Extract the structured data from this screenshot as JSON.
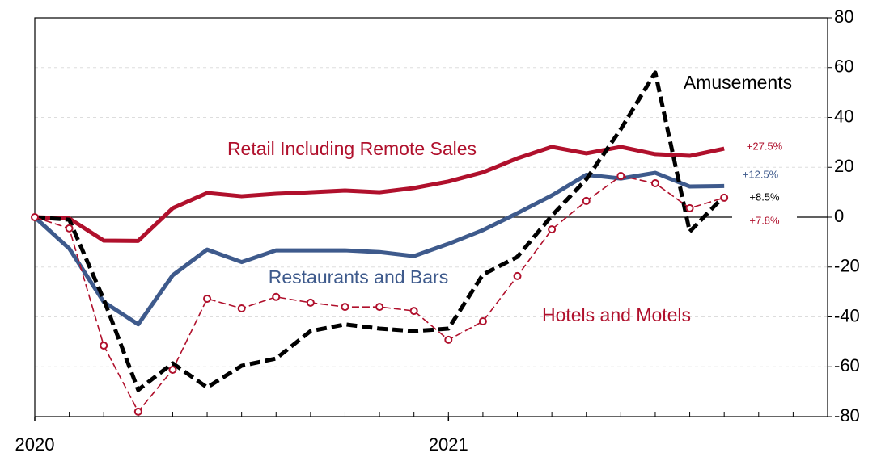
{
  "chart_data": {
    "type": "line",
    "categories": [
      "2020",
      null,
      null,
      null,
      null,
      null,
      null,
      null,
      null,
      null,
      null,
      null,
      "2021",
      null,
      null,
      null,
      null,
      null,
      null,
      null,
      null
    ],
    "ylim": [
      -80,
      80
    ],
    "yticks": [
      -80,
      -60,
      -40,
      -20,
      0,
      20,
      40,
      60,
      80
    ],
    "grid": true,
    "y_axis_side": "right",
    "series": [
      {
        "name": "Retail Including Remote Sales",
        "color": "#b0102c",
        "style": "solid",
        "values": [
          0,
          -0.5,
          -9.4,
          -9.5,
          3.6,
          9.7,
          8.4,
          9.4,
          10,
          10.7,
          10,
          11.7,
          14.3,
          18,
          23.6,
          28.2,
          25.6,
          28.2,
          25.3,
          24.6,
          27.5
        ],
        "value_labels": [
          null,
          null,
          null,
          null,
          null,
          null,
          null,
          null,
          null,
          null,
          null,
          null,
          null,
          null,
          null,
          null,
          null,
          null,
          null,
          null,
          "+27.5%"
        ]
      },
      {
        "name": "Restaurants and Bars",
        "color": "#3e5a8c",
        "style": "solid",
        "values": [
          0,
          -12.6,
          -34,
          -43,
          -23.3,
          -13,
          -18,
          -13.3,
          -13.3,
          -13.3,
          -14,
          -15.6,
          -10.7,
          -5.2,
          1.6,
          8.7,
          17,
          15.5,
          17.8,
          12.3,
          12.5
        ],
        "value_labels": [
          null,
          null,
          null,
          null,
          null,
          null,
          null,
          null,
          null,
          null,
          null,
          null,
          null,
          null,
          null,
          null,
          null,
          null,
          null,
          null,
          "+12.5%"
        ]
      },
      {
        "name": "Amusements",
        "color": "#000000",
        "style": "dashed",
        "values": [
          0,
          -1,
          -33,
          -69.3,
          -58.6,
          -68.3,
          -59.6,
          -56.7,
          -45.7,
          -43,
          -44.7,
          -45.7,
          -44.7,
          -23,
          -15.9,
          0.6,
          15.2,
          35.3,
          58,
          -5.8,
          8.5
        ],
        "value_labels": [
          null,
          null,
          null,
          null,
          null,
          null,
          null,
          null,
          null,
          null,
          null,
          null,
          null,
          null,
          null,
          null,
          null,
          null,
          null,
          null,
          "+8.5%"
        ]
      },
      {
        "name": "Hotels and Motels",
        "color": "#b0102c",
        "style": "dashed-markers",
        "values": [
          0,
          -4.5,
          -51.5,
          -78,
          -61.2,
          -32.7,
          -36.6,
          -32,
          -34.3,
          -36,
          -36,
          -37.6,
          -49.2,
          -41.8,
          -23.6,
          -4.9,
          6.5,
          16.5,
          13.6,
          3.6,
          7.8
        ],
        "value_labels": [
          null,
          null,
          null,
          null,
          null,
          null,
          null,
          null,
          null,
          null,
          null,
          null,
          null,
          null,
          null,
          null,
          null,
          null,
          null,
          null,
          "+7.8%"
        ]
      }
    ]
  }
}
